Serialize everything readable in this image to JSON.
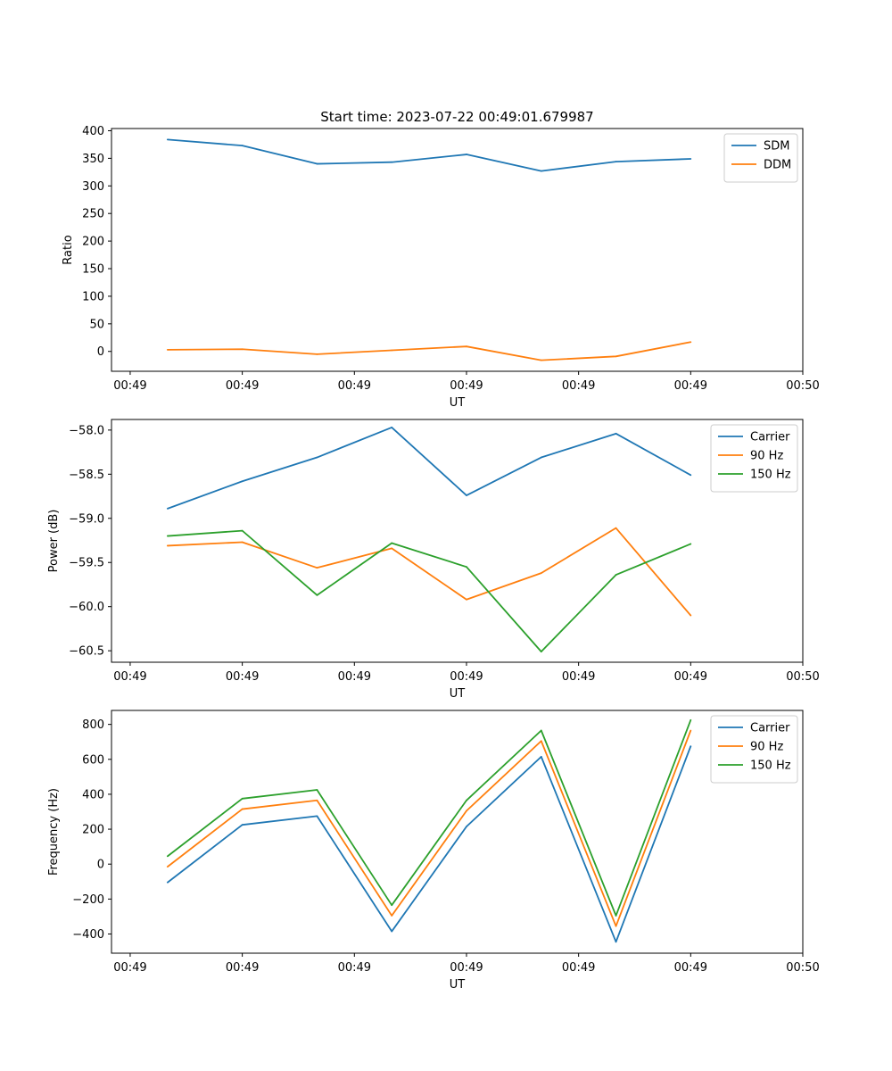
{
  "figure": {
    "title": "Start time: 2023-07-22 00:49:01.679987"
  },
  "chart_data": [
    {
      "type": "line",
      "title": "Start time: 2023-07-22 00:49:01.679987",
      "xlabel": "UT",
      "ylabel": "Ratio",
      "x": [
        1,
        2,
        3,
        4,
        5,
        6,
        7,
        8
      ],
      "xlim": [
        0.25,
        9.5
      ],
      "xticks": [
        0.5,
        2,
        3.5,
        5,
        6.5,
        8,
        9.5
      ],
      "xtick_labels": [
        "00:49",
        "00:49",
        "00:49",
        "00:49",
        "00:49",
        "00:49",
        "00:50"
      ],
      "ylim": [
        -36,
        404
      ],
      "yticks": [
        0,
        50,
        100,
        150,
        200,
        250,
        300,
        350,
        400
      ],
      "ytick_labels": [
        "0",
        "50",
        "100",
        "150",
        "200",
        "250",
        "300",
        "350",
        "400"
      ],
      "legend": "top-right",
      "grid": false,
      "series": [
        {
          "name": "SDM",
          "color": "#1f77b4",
          "values": [
            384,
            373,
            340,
            343,
            357,
            327,
            344,
            349
          ]
        },
        {
          "name": "DDM",
          "color": "#ff7f0e",
          "values": [
            3,
            4,
            -5,
            2,
            9,
            -16,
            -9,
            17
          ]
        }
      ]
    },
    {
      "type": "line",
      "title": "",
      "xlabel": "UT",
      "ylabel": "Power (dB)",
      "x": [
        1,
        2,
        3,
        4,
        5,
        6,
        7,
        8
      ],
      "xlim": [
        0.25,
        9.5
      ],
      "xticks": [
        0.5,
        2,
        3.5,
        5,
        6.5,
        8,
        9.5
      ],
      "xtick_labels": [
        "00:49",
        "00:49",
        "00:49",
        "00:49",
        "00:49",
        "00:49",
        "00:50"
      ],
      "ylim": [
        -60.63,
        -57.88
      ],
      "yticks": [
        -60.5,
        -60.0,
        -59.5,
        -59.0,
        -58.5,
        -58.0
      ],
      "ytick_labels": [
        "−60.5",
        "−60.0",
        "−59.5",
        "−59.0",
        "−58.5",
        "−58.0"
      ],
      "legend": "top-right",
      "grid": false,
      "series": [
        {
          "name": "Carrier",
          "color": "#1f77b4",
          "values": [
            -58.89,
            -58.58,
            -58.31,
            -57.97,
            -58.74,
            -58.31,
            -58.04,
            -58.51
          ]
        },
        {
          "name": "90 Hz",
          "color": "#ff7f0e",
          "values": [
            -59.31,
            -59.27,
            -59.56,
            -59.34,
            -59.92,
            -59.62,
            -59.11,
            -60.1
          ]
        },
        {
          "name": "150 Hz",
          "color": "#2ca02c",
          "values": [
            -59.2,
            -59.14,
            -59.87,
            -59.28,
            -59.55,
            -60.51,
            -59.64,
            -59.29
          ]
        }
      ]
    },
    {
      "type": "line",
      "title": "",
      "xlabel": "UT",
      "ylabel": "Frequency (Hz)",
      "x": [
        1,
        2,
        3,
        4,
        5,
        6,
        7,
        8
      ],
      "xlim": [
        0.25,
        9.5
      ],
      "xticks": [
        0.5,
        2,
        3.5,
        5,
        6.5,
        8,
        9.5
      ],
      "xtick_labels": [
        "00:49",
        "00:49",
        "00:49",
        "00:49",
        "00:49",
        "00:49",
        "00:50"
      ],
      "ylim": [
        -510,
        880
      ],
      "yticks": [
        -400,
        -200,
        0,
        200,
        400,
        600,
        800
      ],
      "ytick_labels": [
        "−400",
        "−200",
        "0",
        "200",
        "400",
        "600",
        "800"
      ],
      "legend": "top-right",
      "grid": false,
      "series": [
        {
          "name": "Carrier",
          "color": "#1f77b4",
          "values": [
            -105,
            225,
            275,
            -385,
            215,
            615,
            -445,
            675
          ]
        },
        {
          "name": "90 Hz",
          "color": "#ff7f0e",
          "values": [
            -15,
            315,
            365,
            -295,
            305,
            705,
            -355,
            765
          ]
        },
        {
          "name": "150 Hz",
          "color": "#2ca02c",
          "values": [
            45,
            375,
            425,
            -235,
            365,
            765,
            -295,
            825
          ]
        }
      ]
    }
  ]
}
